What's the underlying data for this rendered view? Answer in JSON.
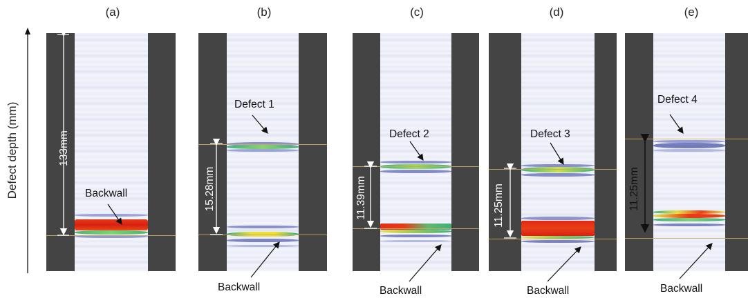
{
  "panels": [
    {
      "label": "(a)"
    },
    {
      "label": "(b)"
    },
    {
      "label": "(c)"
    },
    {
      "label": "(d)"
    },
    {
      "label": "(e)"
    }
  ],
  "axis": {
    "label": "Defect depth (mm)"
  },
  "annotations": {
    "a_dim": "133mm",
    "a_backwall": "Backwall",
    "b_defect": "Defect 1",
    "b_dim": "15.28mm",
    "b_backwall": "Backwall",
    "c_defect": "Defect 2",
    "c_dim": "11.39mm",
    "c_backwall": "Backwall",
    "d_defect": "Defect 3",
    "d_dim": "11.25mm",
    "d_backwall": "Backwall",
    "e_defect": "Defect 4",
    "e_dim": "11.25mm",
    "e_backwall": "Backwall"
  }
}
